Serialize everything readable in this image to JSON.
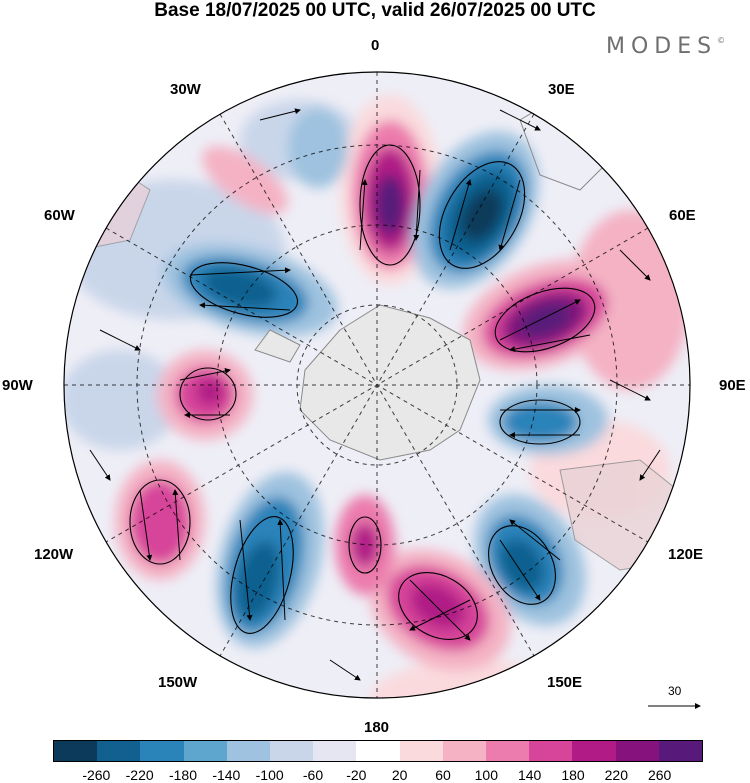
{
  "title": "Base 18/07/2025 00 UTC, valid 26/07/2025 00 UTC",
  "brand": {
    "name": "MODES",
    "mark": "©"
  },
  "longitude_labels": {
    "n0": "0",
    "e30": "30E",
    "e60": "60E",
    "e90": "90E",
    "e120": "120E",
    "e150": "150E",
    "s180": "180",
    "w150": "150W",
    "w120": "120W",
    "w90": "90W",
    "w60": "60W",
    "w30": "30W"
  },
  "reference_vector": {
    "value": "30"
  },
  "colorbar": {
    "colors": [
      "#0c3a5a",
      "#11608f",
      "#2a83b9",
      "#5fa6cf",
      "#9ec2df",
      "#c9d6ea",
      "#e6e6f2",
      "#ffffff",
      "#fadadd",
      "#f4b2c4",
      "#ec7cad",
      "#d7459a",
      "#b01b86",
      "#86127d",
      "#581a7a"
    ],
    "ticks": [
      "-260",
      "-220",
      "-180",
      "-140",
      "-100",
      "-60",
      "-20",
      "20",
      "60",
      "100",
      "140",
      "180",
      "220",
      "260"
    ]
  },
  "anomalies": [
    {
      "name": "positive-center-near-0E",
      "value": 260
    },
    {
      "name": "negative-center-near-30E",
      "value": -260
    },
    {
      "name": "positive-center-near-60E",
      "value": 260
    },
    {
      "name": "negative-center-near-95E",
      "value": -180
    },
    {
      "name": "negative-center-near-130E",
      "value": -220
    },
    {
      "name": "positive-center-near-155E",
      "value": 200
    },
    {
      "name": "positive-center-near-170E",
      "value": 180
    },
    {
      "name": "negative-center-near-150W",
      "value": -220
    },
    {
      "name": "positive-center-near-120W",
      "value": 180
    },
    {
      "name": "positive-center-near-90W",
      "value": 180
    },
    {
      "name": "negative-center-near-60W",
      "value": -220
    },
    {
      "name": "negative-center-near-30W",
      "value": -100
    }
  ]
}
